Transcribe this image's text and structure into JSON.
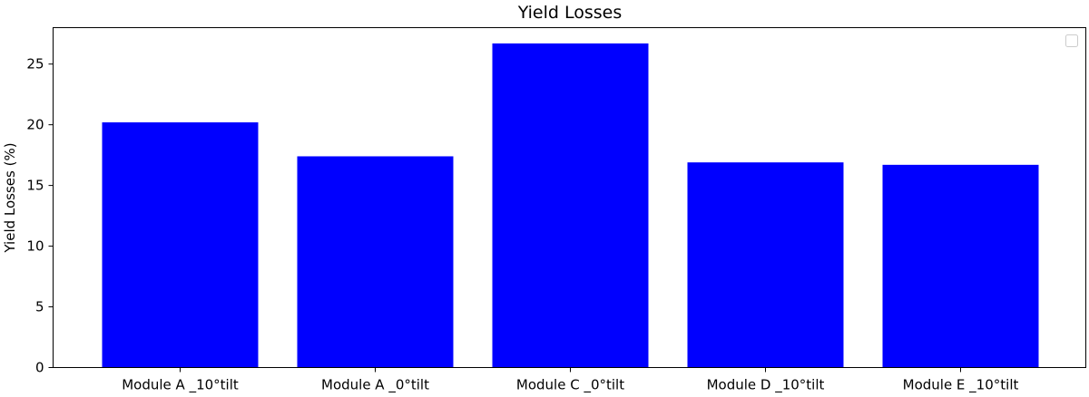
{
  "chart_data": {
    "type": "bar",
    "title": "Yield Losses",
    "xlabel": "",
    "ylabel": "Yield Losses (%)",
    "categories": [
      "Module A _10°tilt",
      "Module A _0°tilt",
      "Module C _0°tilt",
      "Module D _10°tilt",
      "Module E _10°tilt"
    ],
    "values": [
      20.2,
      17.4,
      26.7,
      16.9,
      16.7
    ],
    "ylim": [
      0,
      28
    ],
    "yticks": [
      "0",
      "5",
      "10",
      "15",
      "20",
      "25"
    ],
    "bar_color": "#0000ff",
    "grid": false,
    "legend": {
      "placement": "top-right",
      "entries": []
    }
  }
}
